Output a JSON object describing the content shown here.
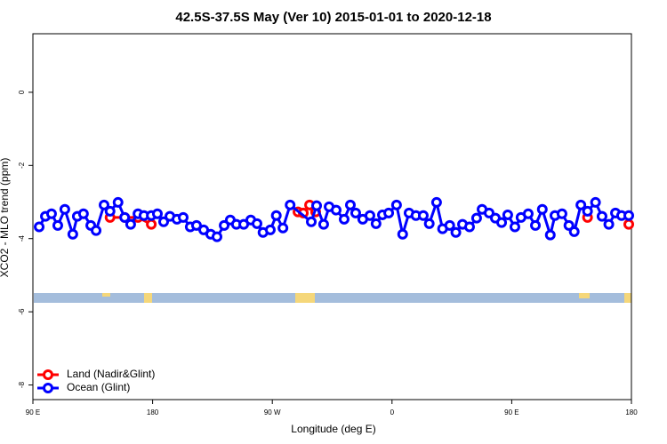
{
  "chart_data": {
    "type": "line",
    "title": "42.5S-37.5S May (Ver 10)   2015-01-01 to 2020-12-18",
    "xlabel": "Longitude (deg E)",
    "ylabel": "XCO2 - MLO trend (ppm)",
    "xlim": [
      90,
      540
    ],
    "ylim": [
      -8.4,
      1.6
    ],
    "xticks": [
      {
        "value": 90,
        "label": "90 E"
      },
      {
        "value": 180,
        "label": "180"
      },
      {
        "value": 270,
        "label": "90 W"
      },
      {
        "value": 360,
        "label": "0"
      },
      {
        "value": 450,
        "label": "90 E"
      },
      {
        "value": 540,
        "label": "180"
      }
    ],
    "yticks": [
      0,
      -2,
      -4,
      -6,
      -8
    ],
    "legend": "bottom-left",
    "series": [
      {
        "name": "Land (Nadir&Glint)",
        "color": "#ff0000",
        "x": [
          148,
          159,
          169,
          179,
          null,
          289.3,
          293.3,
          298,
          302.6,
          null,
          507,
          null,
          538
        ],
        "values": [
          -3.42,
          -3.42,
          -3.42,
          -3.61,
          null,
          -3.27,
          -3.3,
          -3.08,
          -3.27,
          null,
          -3.42,
          null,
          -3.61
        ]
      },
      {
        "name": "Ocean (Glint)",
        "color": "#0000ff",
        "x": [
          94.7,
          99.4,
          104,
          108.7,
          114,
          120,
          123.4,
          128,
          133.5,
          137.5,
          143.5,
          148,
          154,
          159,
          163.5,
          169,
          173.5,
          179,
          183.6,
          188.3,
          193,
          198.3,
          203,
          208.3,
          213,
          218.4,
          223.7,
          228.4,
          233.8,
          238.4,
          243,
          248.5,
          253.8,
          258.5,
          263,
          268.5,
          273,
          278,
          283.4,
          299.3,
          303.3,
          308.6,
          312.7,
          318,
          324,
          328.7,
          332.7,
          338,
          343.4,
          348,
          352.8,
          357.5,
          363.4,
          368,
          372.8,
          378,
          383.5,
          388,
          393.5,
          398,
          403.4,
          408,
          413,
          418.3,
          423.6,
          427.7,
          433,
          437.7,
          442.4,
          447,
          452.4,
          457,
          462.4,
          467.8,
          473,
          479,
          482.5,
          487.8,
          493,
          497,
          502,
          507,
          513,
          517.9,
          523,
          528,
          532.6,
          538
        ],
        "values": [
          -3.68,
          -3.39,
          -3.32,
          -3.64,
          -3.2,
          -3.88,
          -3.39,
          -3.32,
          -3.64,
          -3.78,
          -3.08,
          -3.25,
          -3.01,
          -3.42,
          -3.61,
          -3.32,
          -3.37,
          -3.37,
          -3.32,
          -3.54,
          -3.39,
          -3.47,
          -3.42,
          -3.68,
          -3.64,
          -3.76,
          -3.88,
          -3.95,
          -3.64,
          -3.49,
          -3.61,
          -3.61,
          -3.49,
          -3.59,
          -3.83,
          -3.76,
          -3.37,
          -3.71,
          -3.08,
          -3.54,
          -3.1,
          -3.61,
          -3.13,
          -3.22,
          -3.47,
          -3.08,
          -3.3,
          -3.47,
          -3.37,
          -3.59,
          -3.35,
          -3.3,
          -3.08,
          -3.88,
          -3.3,
          -3.37,
          -3.37,
          -3.59,
          -3.01,
          -3.73,
          -3.64,
          -3.83,
          -3.61,
          -3.68,
          -3.44,
          -3.2,
          -3.3,
          -3.44,
          -3.56,
          -3.35,
          -3.68,
          -3.42,
          -3.32,
          -3.64,
          -3.2,
          -3.9,
          -3.37,
          -3.32,
          -3.64,
          -3.81,
          -3.08,
          -3.25,
          -3.01,
          -3.39,
          -3.61,
          -3.3,
          -3.37,
          -3.37
        ]
      }
    ]
  }
}
